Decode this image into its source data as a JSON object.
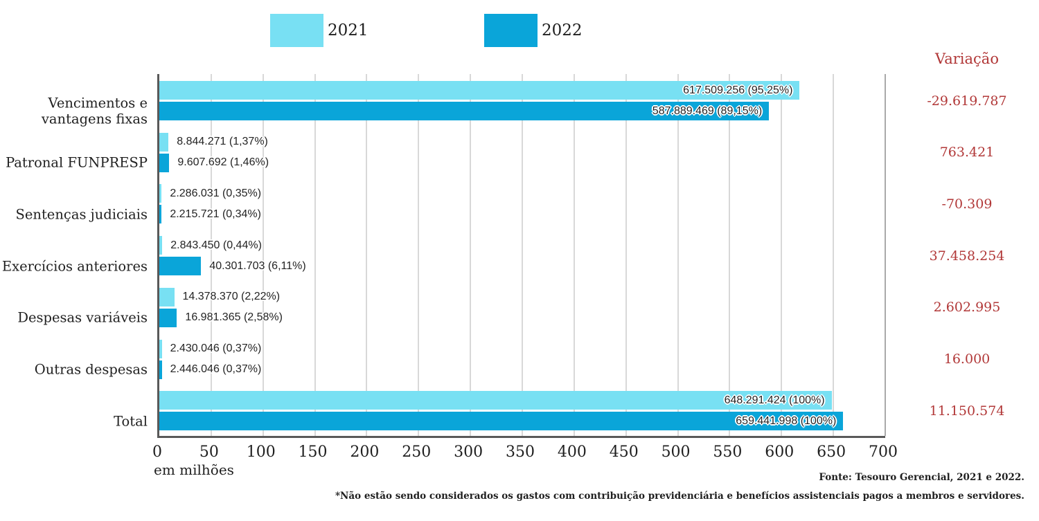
{
  "variation": {
    "header": "Variação",
    "color": "#b13737",
    "values": [
      "-29.619.787",
      "763.421",
      "-70.309",
      "37.458.254",
      "2.602.995",
      "16.000",
      "11.150.574"
    ]
  },
  "footer": {
    "source": "Fonte: Tesouro Gerencial, 2021 e 2022.",
    "note": "*Não estão sendo considerados os gastos com contribuição previdenciária e benefícios assistenciais pagos a membros e servidores."
  },
  "chart_data": {
    "type": "bar",
    "orientation": "horizontal",
    "unit_label": "em milhões",
    "categories": [
      "Vencimentos e vantagens fixas",
      "Patronal FUNPRESP",
      "Sentenças judiciais",
      "Exercícios anteriores",
      "Despesas variáveis",
      "Outras despesas",
      "Total"
    ],
    "series": [
      {
        "name": "2021",
        "color": "#78e0f3",
        "values_millions": [
          617.509256,
          8.844271,
          2.286031,
          2.84345,
          14.37837,
          2.430046,
          648.291424
        ],
        "labels": [
          "617.509.256 (95,25%)",
          "8.844.271 (1,37%)",
          "2.286.031 (0,35%)",
          "2.843.450 (0,44%)",
          "14.378.370 (2,22%)",
          "2.430.046 (0,37%)",
          "648.291.424 (100%)"
        ]
      },
      {
        "name": "2022",
        "color": "#0aa5d9",
        "values_millions": [
          587.889469,
          9.607692,
          2.215721,
          40.301703,
          16.981365,
          2.446046,
          659.441998
        ],
        "labels": [
          "587.889.469 (89,15%)",
          "9.607.692 (1,46%)",
          "2.215.721 (0,34%)",
          "40.301.703 (6,11%)",
          "16.981.365 (2,58%)",
          "2.446.046 (0,37%)",
          "659.441.998 (100%)"
        ]
      }
    ],
    "xlim": [
      0,
      700
    ],
    "x_ticks": [
      0,
      50,
      100,
      150,
      200,
      250,
      300,
      350,
      400,
      450,
      500,
      550,
      600,
      650,
      700
    ],
    "grid": true,
    "legend_position": "top"
  }
}
